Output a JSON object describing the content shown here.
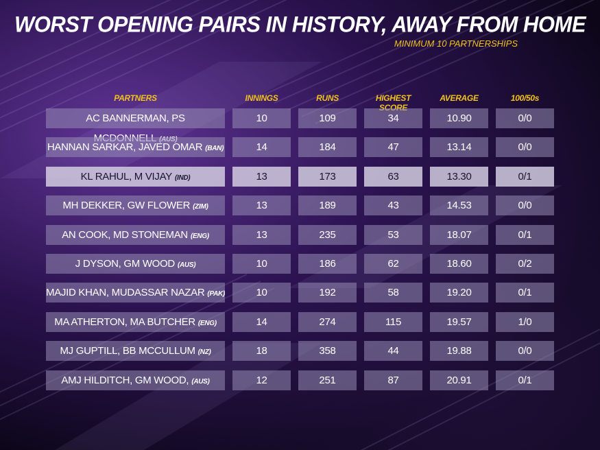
{
  "title": "WORST OPENING PAIRS IN HISTORY, AWAY FROM HOME",
  "subtitle": "MINIMUM 10 PARTNERSHIPS",
  "columns": {
    "partners": "PARTNERS",
    "innings": "INNINGS",
    "runs": "RUNS",
    "highest_score": "HIGHEST SCORE",
    "average": "AVERAGE",
    "hundreds_fifties": "100/50s"
  },
  "colors": {
    "accent": "#f1c21b",
    "row_bg": "#8f86ad",
    "highlight_bg": "#d2cde1"
  },
  "rows": [
    {
      "partners": "AC BANNERMAN, PS MCDONNELL",
      "country": "(AUS)",
      "innings": "10",
      "runs": "109",
      "highest_score": "34",
      "average": "10.90",
      "hundreds_fifties": "0/0",
      "highlighted": false
    },
    {
      "partners": "HANNAN SARKAR, JAVED OMAR",
      "country": "(BAN)",
      "innings": "14",
      "runs": "184",
      "highest_score": "47",
      "average": "13.14",
      "hundreds_fifties": "0/0",
      "highlighted": false
    },
    {
      "partners": "KL RAHUL, M VIJAY",
      "country": "(IND)",
      "innings": "13",
      "runs": "173",
      "highest_score": "63",
      "average": "13.30",
      "hundreds_fifties": "0/1",
      "highlighted": true
    },
    {
      "partners": "MH DEKKER, GW FLOWER",
      "country": "(ZIM)",
      "innings": "13",
      "runs": "189",
      "highest_score": "43",
      "average": "14.53",
      "hundreds_fifties": "0/0",
      "highlighted": false
    },
    {
      "partners": "AN COOK, MD STONEMAN",
      "country": "(ENG)",
      "innings": "13",
      "runs": "235",
      "highest_score": "53",
      "average": "18.07",
      "hundreds_fifties": "0/1",
      "highlighted": false
    },
    {
      "partners": "J DYSON, GM WOOD",
      "country": "(AUS)",
      "innings": "10",
      "runs": "186",
      "highest_score": "62",
      "average": "18.60",
      "hundreds_fifties": "0/2",
      "highlighted": false
    },
    {
      "partners": "MAJID KHAN, MUDASSAR NAZAR",
      "country": "(PAK)",
      "innings": "10",
      "runs": "192",
      "highest_score": "58",
      "average": "19.20",
      "hundreds_fifties": "0/1",
      "highlighted": false
    },
    {
      "partners": "MA ATHERTON, MA BUTCHER",
      "country": "(ENG)",
      "innings": "14",
      "runs": "274",
      "highest_score": "115",
      "average": "19.57",
      "hundreds_fifties": "1/0",
      "highlighted": false
    },
    {
      "partners": "MJ GUPTILL, BB MCCULLUM",
      "country": "(NZ)",
      "innings": "18",
      "runs": "358",
      "highest_score": "44",
      "average": "19.88",
      "hundreds_fifties": "0/0",
      "highlighted": false
    },
    {
      "partners": "AMJ HILDITCH, GM WOOD,",
      "country": "(AUS)",
      "innings": "12",
      "runs": "251",
      "highest_score": "87",
      "average": "20.91",
      "hundreds_fifties": "0/1",
      "highlighted": false
    }
  ]
}
